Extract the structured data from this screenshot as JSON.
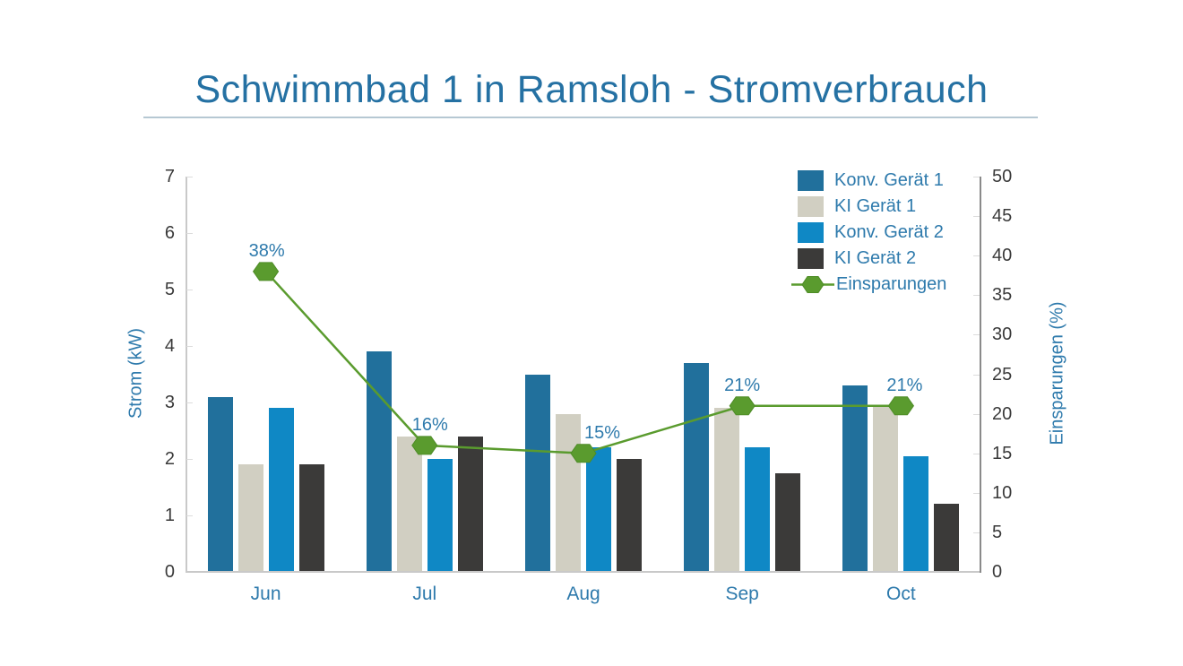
{
  "title": "Schwimmbad 1 in Ramsloh - Stromverbrauch",
  "chart_data": {
    "type": "combo-bar-line",
    "categories": [
      "Jun",
      "Jul",
      "Aug",
      "Sep",
      "Oct"
    ],
    "bar_series": [
      {
        "name": "Konv. Gerät 1",
        "color": "#21709c",
        "values": [
          3.1,
          3.9,
          3.5,
          3.7,
          3.3
        ]
      },
      {
        "name": "KI Gerät 1",
        "color": "#d1cfc2",
        "values": [
          1.9,
          2.4,
          2.8,
          2.9,
          2.95
        ]
      },
      {
        "name": "Konv. Gerät 2",
        "color": "#0f88c5",
        "values": [
          2.9,
          2.0,
          2.2,
          2.2,
          2.05
        ]
      },
      {
        "name": "KI Gerät 2",
        "color": "#3b3a39",
        "values": [
          1.9,
          2.4,
          2.0,
          1.75,
          1.2
        ]
      }
    ],
    "line_series": {
      "name": "Einsparungen",
      "color": "#5a9b2e",
      "marker_stroke": "#4e8c27",
      "values": [
        38,
        16,
        15,
        21,
        21
      ],
      "labels": [
        "38%",
        "16%",
        "15%",
        "21%",
        "21%"
      ]
    },
    "left_axis": {
      "title": "Strom (kW)",
      "min": 0,
      "max": 7,
      "ticks": [
        0,
        1,
        2,
        3,
        4,
        5,
        6,
        7
      ]
    },
    "right_axis": {
      "title": "Einsparungen (%)",
      "min": 0,
      "max": 50,
      "ticks": [
        0,
        5,
        10,
        15,
        20,
        25,
        30,
        35,
        40,
        45,
        50
      ]
    },
    "legend_position": "top-right",
    "grid": false
  },
  "colors": {
    "title_text": "#2571a3",
    "label_text": "#2e7aac",
    "tick_text": "#3a3a3a",
    "axis_light": "#c9c9c9",
    "axis_right": "#8a8a8a",
    "underline": "#b6c8d3",
    "background": "#ffffff"
  }
}
